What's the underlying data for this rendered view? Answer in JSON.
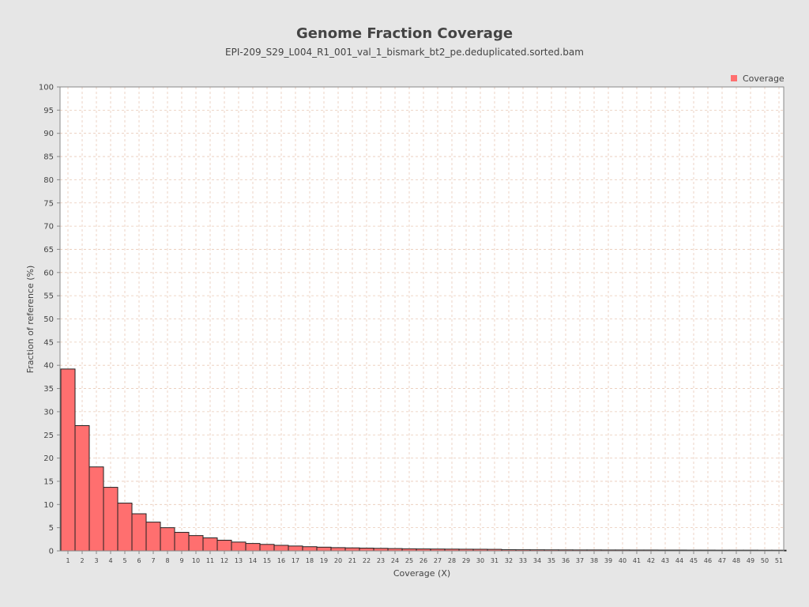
{
  "chart_data": {
    "type": "bar",
    "title": "Genome Fraction Coverage",
    "subtitle": "EPI-209_S29_L004_R1_001_val_1_bismark_bt2_pe.deduplicated.sorted.bam",
    "xlabel": "Coverage (X)",
    "ylabel": "Fraction of reference (%)",
    "ylim": [
      0,
      100
    ],
    "yticks": [
      0,
      5,
      10,
      15,
      20,
      25,
      30,
      35,
      40,
      45,
      50,
      55,
      60,
      65,
      70,
      75,
      80,
      85,
      90,
      95,
      100
    ],
    "categories": [
      "1",
      "2",
      "3",
      "4",
      "5",
      "6",
      "7",
      "8",
      "9",
      "10",
      "11",
      "12",
      "13",
      "14",
      "15",
      "16",
      "17",
      "18",
      "19",
      "20",
      "21",
      "22",
      "23",
      "24",
      "25",
      "26",
      "27",
      "28",
      "29",
      "30",
      "31",
      "32",
      "33",
      "34",
      "35",
      "36",
      "37",
      "38",
      "39",
      "40",
      "41",
      "42",
      "43",
      "44",
      "45",
      "46",
      "47",
      "48",
      "49",
      "50",
      "51"
    ],
    "series": [
      {
        "name": "Coverage",
        "color": "#ff6f6f",
        "values": [
          39.2,
          27.0,
          18.1,
          13.7,
          10.3,
          8.0,
          6.2,
          5.0,
          4.0,
          3.3,
          2.8,
          2.3,
          1.9,
          1.6,
          1.4,
          1.2,
          1.05,
          0.9,
          0.8,
          0.7,
          0.65,
          0.6,
          0.55,
          0.5,
          0.45,
          0.42,
          0.4,
          0.38,
          0.36,
          0.35,
          0.33,
          0.25,
          0.24,
          0.23,
          0.22,
          0.21,
          0.2,
          0.2,
          0.19,
          0.19,
          0.18,
          0.18,
          0.17,
          0.17,
          0.16,
          0.16,
          0.15,
          0.15,
          0.15,
          0.14,
          0.14
        ]
      }
    ],
    "grid": true,
    "legend_position": "top-right"
  }
}
